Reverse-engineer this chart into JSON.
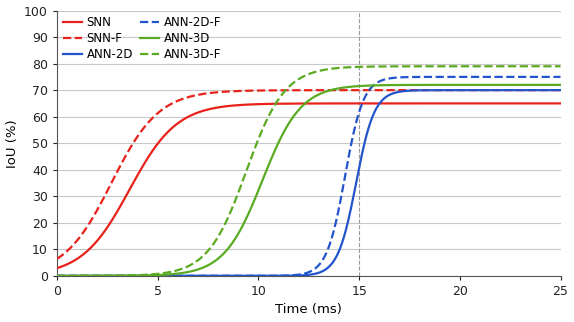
{
  "xlabel": "Time (ms)",
  "ylabel": "IoU (%)",
  "xlim": [
    0,
    25
  ],
  "ylim": [
    0,
    100
  ],
  "xticks": [
    0,
    5,
    10,
    15,
    20,
    25
  ],
  "yticks": [
    0,
    10,
    20,
    30,
    40,
    50,
    60,
    70,
    80,
    90,
    100
  ],
  "vline_x": 15,
  "legend_order": [
    "SNN",
    "SNN-F",
    "ANN-2D",
    "ANN-2D-F",
    "ANN-3D",
    "ANN-3D-F"
  ],
  "curves": {
    "SNN": {
      "color": "#e8221a",
      "linestyle": "solid",
      "midpoint": 3.6,
      "steepness": 0.85,
      "saturation": 65.0
    },
    "SNN-F": {
      "color": "#e8221a",
      "linestyle": "dashed",
      "midpoint": 2.7,
      "steepness": 0.85,
      "saturation": 70.0
    },
    "ANN-2D": {
      "color": "#2255cc",
      "linestyle": "solid",
      "midpoint": 14.85,
      "steepness": 2.2,
      "saturation": 70.0
    },
    "ANN-2D-F": {
      "color": "#2255cc",
      "linestyle": "dashed",
      "midpoint": 14.3,
      "steepness": 2.2,
      "saturation": 75.0
    },
    "ANN-3D": {
      "color": "#5aaa22",
      "linestyle": "solid",
      "midpoint": 10.2,
      "steepness": 1.05,
      "saturation": 72.0
    },
    "ANN-3D-F": {
      "color": "#5aaa22",
      "linestyle": "dashed",
      "midpoint": 9.4,
      "steepness": 1.05,
      "saturation": 79.0
    }
  },
  "background_color": "#ffffff",
  "grid_color": "#c8c8c8",
  "linewidth": 1.6,
  "figsize": [
    5.74,
    3.22
  ],
  "dpi": 100
}
